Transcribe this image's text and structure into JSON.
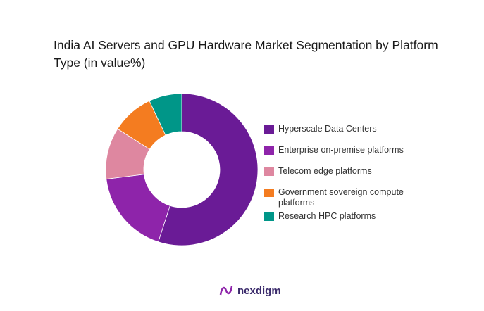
{
  "chart_data": {
    "type": "pie",
    "donut": true,
    "title": "India AI Servers and GPU Hardware Market Segmentation by Platform Type (in value%)",
    "categories": [
      "Hyperscale Data Centers",
      "Enterprise on-premise platforms",
      "Telecom edge platforms",
      "Government sovereign compute platforms",
      "Research HPC platforms"
    ],
    "values": [
      55,
      18,
      11,
      9,
      7
    ],
    "colors": [
      "#6a1b96",
      "#8e24aa",
      "#de87a0",
      "#f47c20",
      "#009688"
    ],
    "legend_position": "right"
  },
  "branding": {
    "logo_text": "nexdigm"
  }
}
